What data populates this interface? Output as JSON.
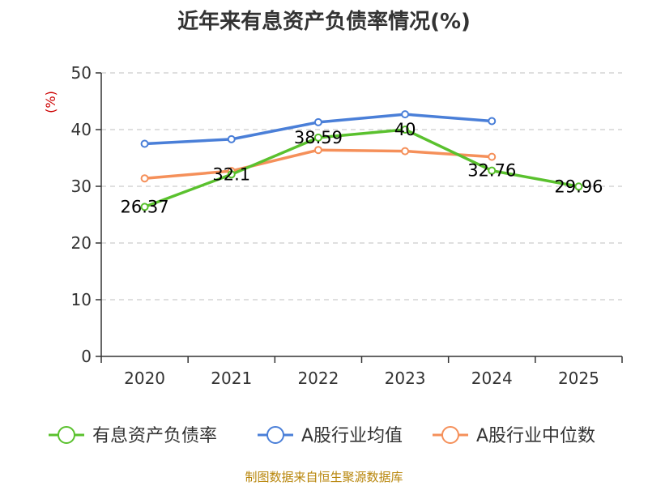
{
  "title": "近年来有息资产负债率情况(%)",
  "source": "制图数据来自恒生聚源数据库",
  "chart_data": {
    "type": "line",
    "title": "近年来有息资产负债率情况(%)",
    "ylabel": "(%)",
    "xlabel": "",
    "categories": [
      "2020",
      "2021",
      "2022",
      "2023",
      "2024",
      "2025"
    ],
    "ylim": [
      0,
      50
    ],
    "yticks": [
      0,
      10,
      20,
      30,
      40,
      50
    ],
    "grid": true,
    "legend_position": "bottom",
    "series": [
      {
        "name": "有息资产负债率",
        "color": "#5ac12e",
        "values": [
          26.37,
          32.1,
          38.59,
          40,
          32.76,
          29.96
        ],
        "labels": [
          "26.37",
          "32.1",
          "38.59",
          "40",
          "32.76",
          "29.96"
        ]
      },
      {
        "name": "A股行业均值",
        "color": "#4a7fd8",
        "values": [
          37.5,
          38.3,
          41.3,
          42.7,
          41.5,
          null
        ]
      },
      {
        "name": "A股行业中位数",
        "color": "#f5905a",
        "values": [
          31.4,
          32.7,
          36.4,
          36.2,
          35.2,
          null
        ]
      }
    ]
  }
}
